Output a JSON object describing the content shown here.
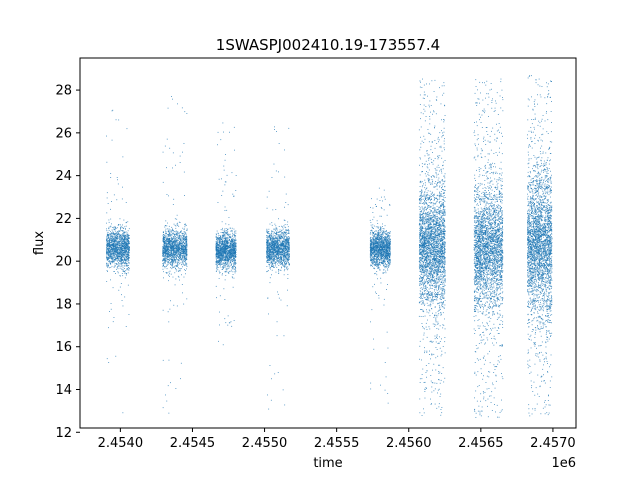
{
  "chart_data": {
    "type": "scatter",
    "title": "1SWASPJ002410.19-173557.4",
    "xlabel": "time",
    "ylabel": "flux",
    "x_offset_label": "1e6",
    "xlim": [
      2453720,
      2457160
    ],
    "ylim": [
      12.2,
      29.5
    ],
    "x_ticks": [
      2454000,
      2454500,
      2455000,
      2455500,
      2456000,
      2456500,
      2457000
    ],
    "x_tick_labels": [
      "2.4540",
      "2.4545",
      "2.4550",
      "2.4555",
      "2.4560",
      "2.4565",
      "2.4570"
    ],
    "y_ticks": [
      12,
      14,
      16,
      18,
      20,
      22,
      24,
      26,
      28
    ],
    "y_tick_labels": [
      "12",
      "14",
      "16",
      "18",
      "20",
      "22",
      "24",
      "26",
      "28"
    ],
    "grid": false,
    "legend": false,
    "marker_color": "#1f77b4",
    "series": [
      {
        "clusters": [
          {
            "x_start": 2453900,
            "x_end": 2454060,
            "y_center": 20.6,
            "y_core_halfwidth": 0.8,
            "y_min": 12.9,
            "y_max": 27.6
          },
          {
            "x_start": 2454290,
            "x_end": 2454460,
            "y_center": 20.6,
            "y_core_halfwidth": 0.8,
            "y_min": 12.8,
            "y_max": 28.0
          },
          {
            "x_start": 2454660,
            "x_end": 2454800,
            "y_center": 20.5,
            "y_core_halfwidth": 0.75,
            "y_min": 16.0,
            "y_max": 26.8
          },
          {
            "x_start": 2455010,
            "x_end": 2455170,
            "y_center": 20.6,
            "y_core_halfwidth": 0.75,
            "y_min": 13.0,
            "y_max": 26.5
          },
          {
            "x_start": 2455730,
            "x_end": 2455870,
            "y_center": 20.6,
            "y_core_halfwidth": 0.75,
            "y_min": 12.8,
            "y_max": 23.5
          },
          {
            "x_start": 2456070,
            "x_end": 2456250,
            "y_center": 20.7,
            "y_core_halfwidth": 2.2,
            "y_min": 12.7,
            "y_max": 28.6
          },
          {
            "x_start": 2456450,
            "x_end": 2456650,
            "y_center": 20.6,
            "y_core_halfwidth": 2.3,
            "y_min": 12.7,
            "y_max": 28.6
          },
          {
            "x_start": 2456820,
            "x_end": 2456990,
            "y_center": 20.8,
            "y_core_halfwidth": 2.6,
            "y_min": 12.7,
            "y_max": 28.7
          }
        ]
      }
    ]
  }
}
